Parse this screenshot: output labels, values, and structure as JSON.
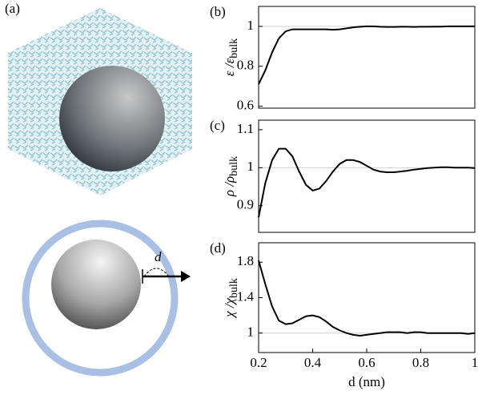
{
  "panel_a": {
    "label": "(a)",
    "d_label": "d"
  },
  "chart_data": [
    {
      "type": "line",
      "panel_label": "(b)",
      "ylabel": "ε /ε",
      "ylabel_sub": "bulk",
      "color": "#000000",
      "x": [
        0.2,
        0.225,
        0.25,
        0.275,
        0.3,
        0.325,
        0.35,
        0.375,
        0.4,
        0.425,
        0.45,
        0.475,
        0.5,
        0.525,
        0.55,
        0.575,
        0.6,
        0.625,
        0.65,
        0.675,
        0.7,
        0.725,
        0.75,
        0.775,
        0.8,
        0.825,
        0.85,
        0.875,
        0.9,
        0.925,
        0.95,
        0.975,
        1
      ],
      "values": [
        0.71,
        0.78,
        0.87,
        0.94,
        0.975,
        0.985,
        0.985,
        0.985,
        0.985,
        0.985,
        0.985,
        0.983,
        0.985,
        0.99,
        0.995,
        0.998,
        1.0,
        1.0,
        0.998,
        0.997,
        0.997,
        0.998,
        0.998,
        0.997,
        0.998,
        0.998,
        0.999,
        0.999,
        1.0,
        1.0,
        1.0,
        1.0,
        1.0
      ],
      "xlim": [
        0.2,
        1
      ],
      "ylim": [
        0.59,
        1.1
      ],
      "yticks": [
        0.6,
        0.8,
        1
      ],
      "hline": 1
    },
    {
      "type": "line",
      "panel_label": "(c)",
      "ylabel": "ρ /ρ",
      "ylabel_sub": "bulk",
      "color": "#000000",
      "x": [
        0.2,
        0.225,
        0.25,
        0.275,
        0.3,
        0.325,
        0.35,
        0.375,
        0.4,
        0.425,
        0.45,
        0.475,
        0.5,
        0.525,
        0.55,
        0.575,
        0.6,
        0.625,
        0.65,
        0.675,
        0.7,
        0.725,
        0.75,
        0.775,
        0.8,
        0.825,
        0.85,
        0.875,
        0.9,
        0.925,
        0.95,
        0.975,
        1
      ],
      "values": [
        0.87,
        0.96,
        1.02,
        1.05,
        1.05,
        1.03,
        0.99,
        0.955,
        0.94,
        0.945,
        0.965,
        0.99,
        1.01,
        1.02,
        1.02,
        1.015,
        1.005,
        0.995,
        0.99,
        0.988,
        0.988,
        0.99,
        0.992,
        0.995,
        0.997,
        0.999,
        1.0,
        1.001,
        1.001,
        1.0,
        1.0,
        1.0,
        0.999
      ],
      "xlim": [
        0.2,
        1
      ],
      "ylim": [
        0.83,
        1.125
      ],
      "yticks": [
        0.9,
        1,
        1.1
      ],
      "hline": 1
    },
    {
      "type": "line",
      "panel_label": "(d)",
      "ylabel": "χ /χ",
      "ylabel_sub": "bulk",
      "color": "#000000",
      "x": [
        0.2,
        0.225,
        0.25,
        0.275,
        0.3,
        0.325,
        0.35,
        0.375,
        0.4,
        0.425,
        0.45,
        0.475,
        0.5,
        0.525,
        0.55,
        0.575,
        0.6,
        0.625,
        0.65,
        0.675,
        0.7,
        0.725,
        0.75,
        0.775,
        0.8,
        0.825,
        0.85,
        0.875,
        0.9,
        0.925,
        0.95,
        0.975,
        1
      ],
      "values": [
        1.82,
        1.55,
        1.3,
        1.14,
        1.1,
        1.11,
        1.15,
        1.19,
        1.2,
        1.18,
        1.13,
        1.07,
        1.03,
        1.0,
        0.98,
        0.97,
        0.98,
        0.99,
        1.0,
        1.01,
        1.01,
        1.01,
        1.0,
        1.01,
        1.01,
        1.0,
        1.0,
        1.0,
        1.0,
        1.0,
        1.0,
        0.99,
        1.0
      ],
      "xlim": [
        0.2,
        1
      ],
      "ylim": [
        0.78,
        2.02
      ],
      "yticks": [
        1,
        1.4,
        1.8
      ],
      "hline": 1,
      "xlabel": "d (nm)",
      "xticks": [
        0.2,
        0.4,
        0.6,
        0.8,
        1
      ]
    }
  ]
}
